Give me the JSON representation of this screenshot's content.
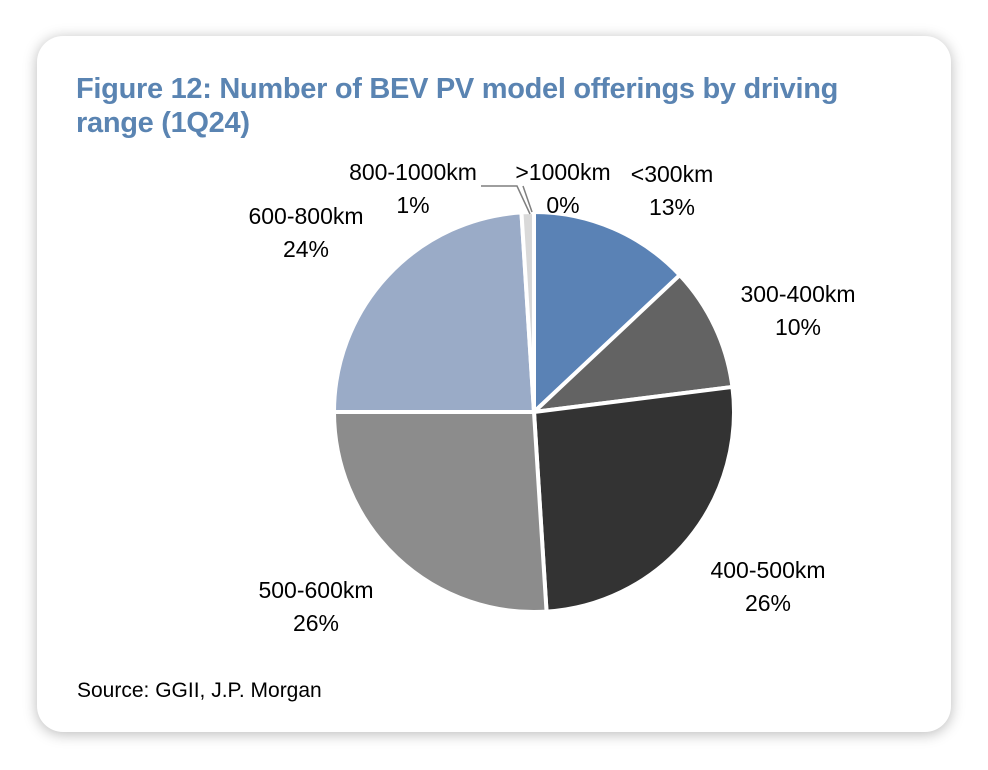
{
  "figure": {
    "title": "Figure 12: Number of BEV PV model offerings by driving range (1Q24)",
    "source": "Source: GGII, J.P. Morgan"
  },
  "chart_data": {
    "type": "pie",
    "title": "Figure 12: Number of BEV PV model offerings by driving range (1Q24)",
    "categories": [
      "<300km",
      "300-400km",
      "400-500km",
      "500-600km",
      "600-800km",
      "800-1000km",
      ">1000km"
    ],
    "values": [
      13,
      10,
      26,
      26,
      24,
      1,
      0
    ],
    "value_labels": [
      "13%",
      "10%",
      "26%",
      "26%",
      "24%",
      "1%",
      "0%"
    ],
    "colors": [
      "#5a82b5",
      "#636363",
      "#333333",
      "#8c8c8c",
      "#9aabc7",
      "#d9d9d9",
      "#b0b0b0"
    ],
    "start": "12 o'clock, clockwise",
    "legend": "none (data labels)"
  }
}
